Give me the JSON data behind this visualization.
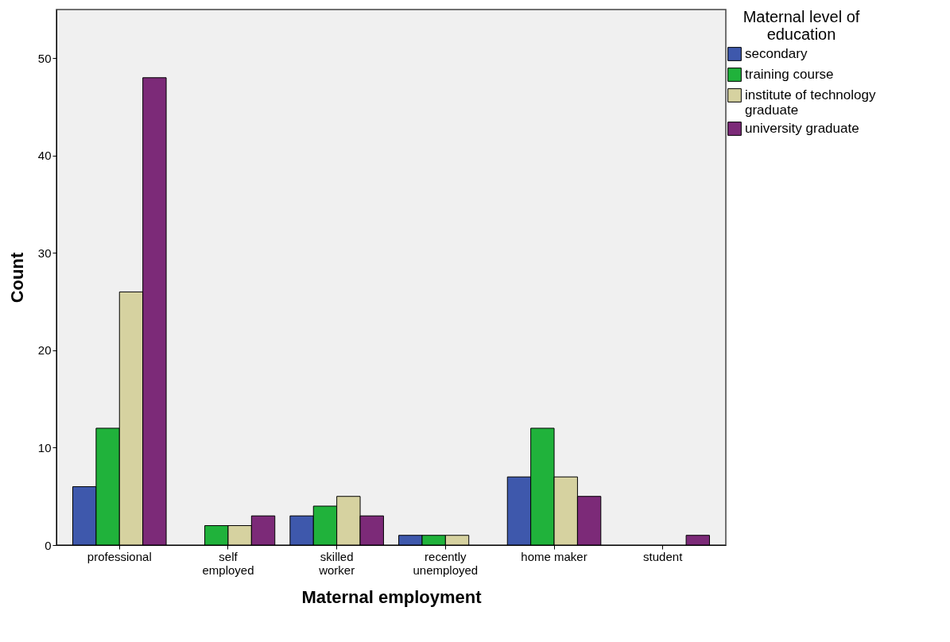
{
  "chart_data": {
    "type": "bar",
    "xlabel": "Maternal employment",
    "ylabel": "Count",
    "legend_title": "Maternal level of education",
    "categories": [
      "professional",
      "self employed",
      "skilled worker",
      "recently unemployed",
      "home maker",
      "student"
    ],
    "series": [
      {
        "name": "secondary",
        "color": "#3e58ac",
        "values": [
          6,
          null,
          3,
          1,
          7,
          null
        ]
      },
      {
        "name": "training course",
        "color": "#20b23b",
        "values": [
          12,
          2,
          4,
          1,
          12,
          null
        ]
      },
      {
        "name": "institute of technology graduate",
        "color": "#d6d2a0",
        "values": [
          26,
          2,
          5,
          1,
          7,
          null
        ]
      },
      {
        "name": "university graduate",
        "color": "#7c2a78",
        "values": [
          48,
          3,
          3,
          null,
          5,
          1
        ]
      }
    ],
    "ylim": [
      0,
      55
    ],
    "yticks": [
      0,
      10,
      20,
      30,
      40,
      50
    ],
    "grid": false,
    "legend": "top right"
  }
}
